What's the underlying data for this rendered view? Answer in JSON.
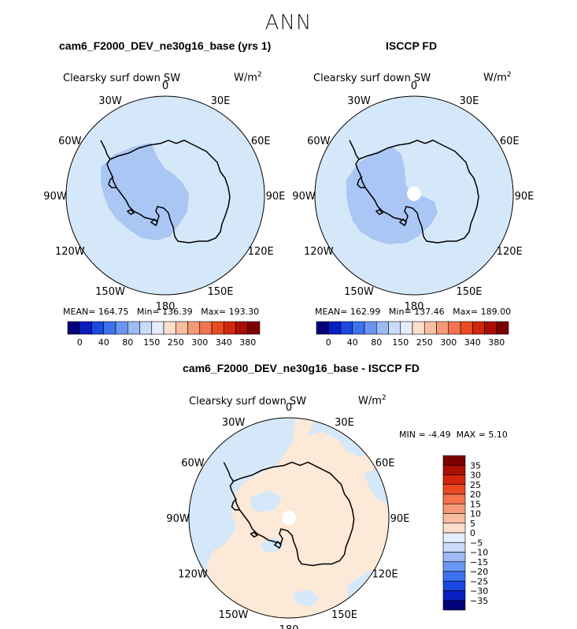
{
  "figure": {
    "title": "ANN",
    "panels": [
      {
        "id": "model",
        "title": "cam6_F2000_DEV_ne30g16_base (yrs 1)",
        "variable": "Clearsky surf down SW",
        "units": "W/m",
        "units_exp": "2",
        "stats": {
          "mean_label": "MEAN=",
          "mean": "164.75",
          "min_label": "Min=",
          "min": "136.39",
          "max_label": "Max=",
          "max": "193.30"
        }
      },
      {
        "id": "obs",
        "title": "ISCCP FD",
        "variable": "Clearsky surf down SW",
        "units": "W/m",
        "units_exp": "2",
        "stats": {
          "mean_label": "MEAN=",
          "mean": "162.99",
          "min_label": "Min=",
          "min": "137.46",
          "max_label": "Max=",
          "max": "189.00"
        }
      },
      {
        "id": "diff",
        "title": "cam6_F2000_DEV_ne30g16_base - ISCCP FD",
        "variable": "Clearsky surf down SW",
        "units": "W/m",
        "units_exp": "2",
        "stats": {
          "min_label": "MIN =",
          "min": "-4.49",
          "max_label": "MAX =",
          "max": "5.10"
        }
      }
    ],
    "longitude_labels": [
      "0",
      "30E",
      "60E",
      "90E",
      "120E",
      "150E",
      "180",
      "150W",
      "120W",
      "90W",
      "60W",
      "30W"
    ],
    "colorbar_main": {
      "colors": [
        "#020279",
        "#0a1ec2",
        "#1a48e0",
        "#3c72ee",
        "#6a96f2",
        "#9cbaf3",
        "#c9dbf9",
        "#e4eefc",
        "#fbdfcc",
        "#f7bea0",
        "#f59a76",
        "#f2734e",
        "#ea4a22",
        "#d2260c",
        "#a81004",
        "#7d0000"
      ],
      "tick_labels": [
        "0",
        "40",
        "80",
        "150",
        "250",
        "300",
        "340",
        "380"
      ]
    },
    "colorbar_diff": {
      "colors_top_to_bottom": [
        "#7d0000",
        "#a81004",
        "#d2260c",
        "#ea4a22",
        "#f2734e",
        "#f59a76",
        "#f7bea0",
        "#fbdfcc",
        "#e4eefc",
        "#c9dbf9",
        "#9cbaf3",
        "#6a96f2",
        "#3c72ee",
        "#1a48e0",
        "#0a1ec2",
        "#020279"
      ],
      "tick_labels": [
        "35",
        "30",
        "25",
        "20",
        "15",
        "10",
        "5",
        "0",
        "−5",
        "−10",
        "−15",
        "−20",
        "−25",
        "−30",
        "−35"
      ]
    },
    "field_colors": {
      "ocean_main": "#d5e8f9",
      "interior_main": "#aac6f4",
      "pole_hole": "#ffffff",
      "diff_positive": "#fce9d8",
      "diff_negative": "#d5e8f9"
    }
  }
}
